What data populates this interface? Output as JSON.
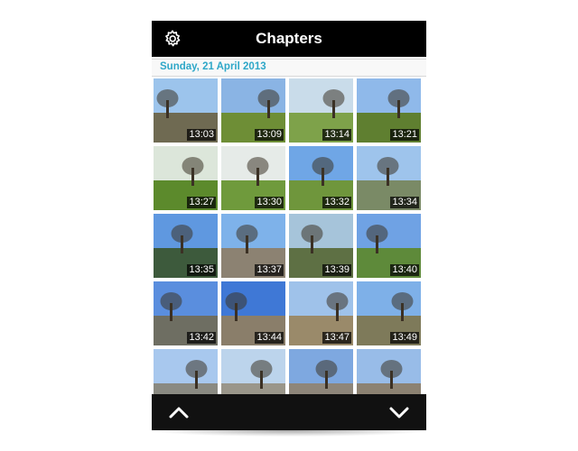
{
  "header": {
    "title": "Chapters",
    "settings_icon": "gear-icon"
  },
  "date_header": "Sunday, 21 April 2013",
  "photos": [
    {
      "time": "13:03",
      "sky": "#9cc4ec",
      "ground": "#6f6a52",
      "scene": "tree-and-building"
    },
    {
      "time": "13:09",
      "sky": "#8ab4e4",
      "ground": "#6e8e36",
      "scene": "tree-on-lawn"
    },
    {
      "time": "13:14",
      "sky": "#c9dcea",
      "ground": "#7ea24a",
      "scene": "hand-with-cup"
    },
    {
      "time": "13:21",
      "sky": "#8fb9ea",
      "ground": "#5f7f30",
      "scene": "open-park"
    },
    {
      "time": "13:27",
      "sky": "#dce6da",
      "ground": "#5c8a2c",
      "scene": "grass-and-hand"
    },
    {
      "time": "13:30",
      "sky": "#e6ebe8",
      "ground": "#6f9a3c",
      "scene": "cup-on-grass"
    },
    {
      "time": "13:32",
      "sky": "#6fa6e6",
      "ground": "#6f963c",
      "scene": "trees-blue-sky"
    },
    {
      "time": "13:34",
      "sky": "#9ec4ec",
      "ground": "#7a8a66",
      "scene": "path-and-trees"
    },
    {
      "time": "13:35",
      "sky": "#5f98e0",
      "ground": "#3d5a3c",
      "scene": "lake"
    },
    {
      "time": "13:37",
      "sky": "#7eb2ea",
      "ground": "#8c8272",
      "scene": "path-people"
    },
    {
      "time": "13:39",
      "sky": "#a6c4da",
      "ground": "#5e7044",
      "scene": "person-close"
    },
    {
      "time": "13:40",
      "sky": "#6fa2e4",
      "ground": "#5e8a3a",
      "scene": "hand-and-sky"
    },
    {
      "time": "13:42",
      "sky": "#5a8ede",
      "ground": "#6e6e62",
      "scene": "street"
    },
    {
      "time": "13:44",
      "sky": "#3f78d6",
      "ground": "#8a7e6a",
      "scene": "lamp-and-people"
    },
    {
      "time": "13:47",
      "sky": "#9fc2ea",
      "ground": "#9a8a6a",
      "scene": "bare-tree"
    },
    {
      "time": "13:49",
      "sky": "#7eb0e8",
      "ground": "#7e7a5a",
      "scene": "tree-path"
    },
    {
      "time": "",
      "sky": "#a8c8ee",
      "ground": "#8a8a82",
      "scene": "buildings"
    },
    {
      "time": "",
      "sky": "#bcd4ec",
      "ground": "#9a968a",
      "scene": "tower"
    },
    {
      "time": "",
      "sky": "#7ea8e0",
      "ground": "#8e867a",
      "scene": "street-buildings"
    },
    {
      "time": "",
      "sky": "#98bce8",
      "ground": "#8c8272",
      "scene": "building-corner"
    }
  ],
  "footer": {
    "up_icon": "chevron-up-icon",
    "down_icon": "chevron-down-icon"
  }
}
